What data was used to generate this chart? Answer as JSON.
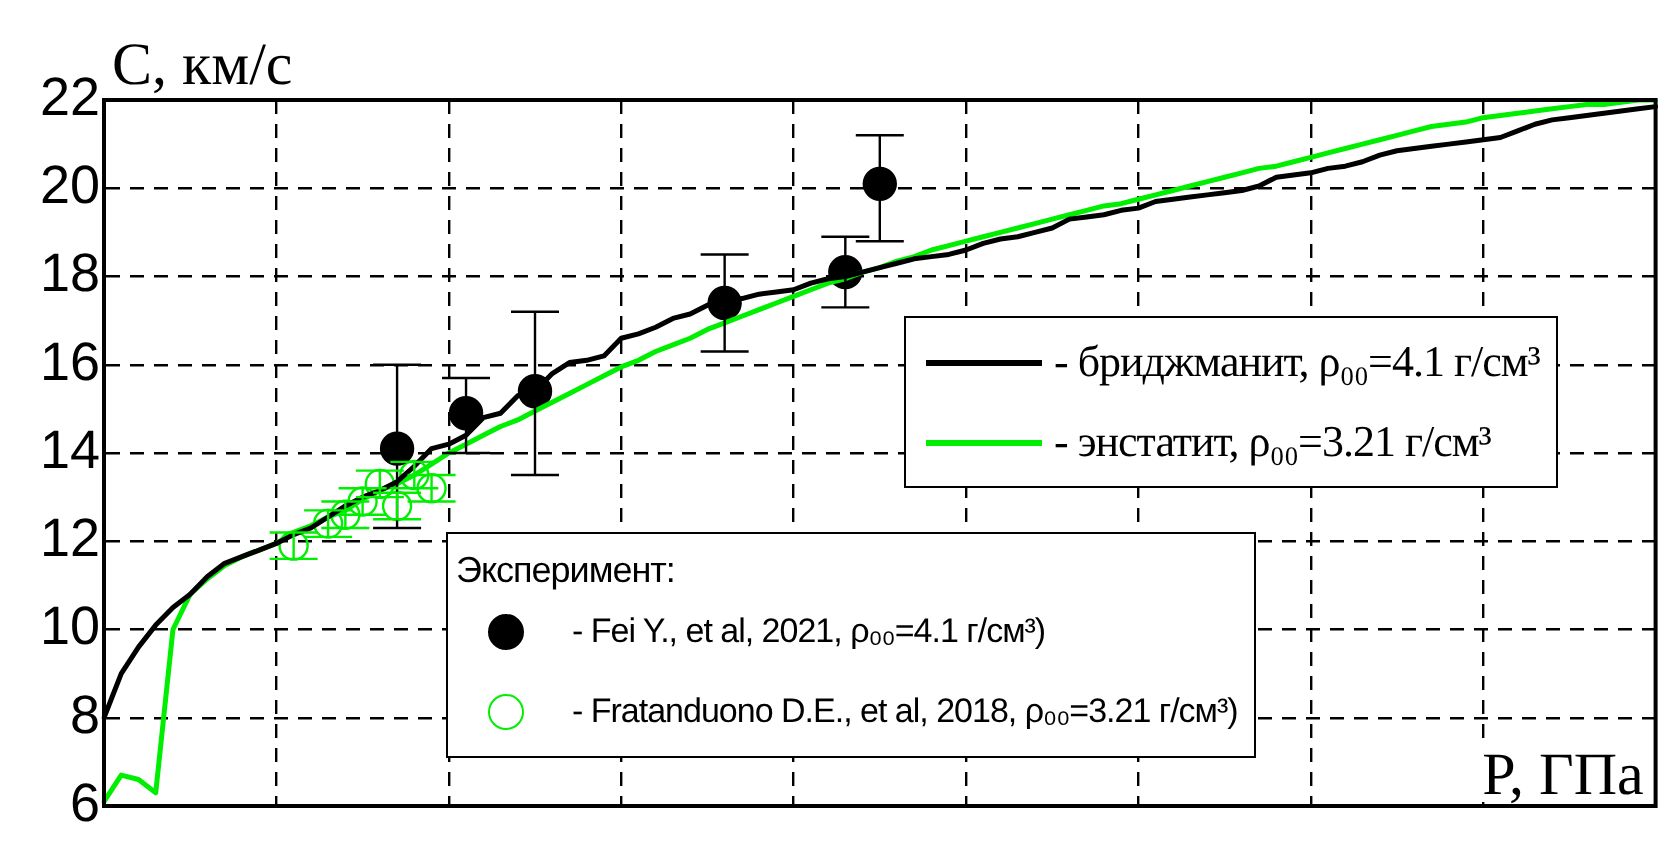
{
  "chart_data": {
    "type": "line",
    "ylabel": "C, км/с",
    "xlabel": "P, ГПа",
    "legend_title": "Эксперимент:",
    "categories": [
      null,
      null,
      null,
      null,
      null,
      null,
      null,
      null,
      null,
      null,
      null,
      null,
      null,
      null,
      null,
      null,
      null,
      null,
      null,
      null,
      null,
      null,
      null,
      null,
      null,
      null,
      null,
      null,
      null,
      null,
      null,
      null,
      null,
      null,
      null,
      null,
      null,
      null,
      null,
      null,
      null,
      null,
      null,
      null,
      null,
      null,
      null,
      null,
      null,
      null,
      null,
      null,
      null,
      null,
      null,
      null,
      null,
      null,
      null,
      null,
      null,
      null,
      null,
      null,
      null,
      null,
      null,
      null,
      null,
      null,
      null,
      null,
      null,
      null,
      null,
      null,
      null,
      null,
      null,
      null,
      null,
      null,
      null,
      null,
      null,
      null,
      null,
      null,
      null,
      null,
      null
    ],
    "ylim": [
      6,
      22
    ],
    "yticks": [
      6,
      8,
      10,
      12,
      14,
      16,
      18,
      20,
      22
    ],
    "grid": true,
    "legend": "bottom right",
    "line_style": "solid",
    "series": [
      {
        "name": "- бриджманит, ρ₀₀=4.1 г/см³",
        "marker": "none",
        "color": "#000000",
        "values": [
          8.0,
          9.0,
          9.6,
          10.1,
          10.5,
          10.8,
          11.2,
          11.5,
          11.65,
          11.8,
          11.95,
          12.15,
          12.3,
          12.55,
          12.8,
          13.0,
          13.15,
          13.35,
          13.7,
          14.1,
          14.2,
          14.4,
          14.8,
          14.9,
          15.3,
          15.4,
          15.8,
          16.05,
          16.1,
          16.2,
          16.6,
          16.7,
          16.85,
          17.05,
          17.15,
          17.35,
          17.45,
          17.5,
          17.6,
          17.65,
          17.7,
          17.85,
          17.95,
          18.0,
          18.1,
          18.2,
          18.3,
          18.4,
          18.45,
          18.5,
          18.6,
          18.75,
          18.85,
          18.9,
          19.0,
          19.1,
          19.3,
          19.35,
          19.4,
          19.5,
          19.55,
          19.7,
          19.75,
          19.8,
          19.85,
          19.9,
          19.95,
          20.05,
          20.25,
          20.3,
          20.35,
          20.45,
          20.5,
          20.6,
          20.75,
          20.85,
          20.9,
          20.95,
          21.0,
          21.05,
          21.1,
          21.15,
          21.3,
          21.45,
          21.55,
          21.6,
          21.65,
          21.7,
          21.75,
          21.8,
          21.85
        ]
      },
      {
        "name": "- энстатит, ρ₀₀=3.21 г/см³",
        "marker": "none",
        "color": "#00ee00",
        "values": [
          6.1,
          6.7,
          6.6,
          6.3,
          10.0,
          10.8,
          11.15,
          11.45,
          11.65,
          11.8,
          11.95,
          12.2,
          12.35,
          12.55,
          12.7,
          12.95,
          13.15,
          13.3,
          13.5,
          13.75,
          14.0,
          14.2,
          14.4,
          14.6,
          14.75,
          14.95,
          15.15,
          15.35,
          15.55,
          15.75,
          15.95,
          16.1,
          16.3,
          16.45,
          16.6,
          16.8,
          16.95,
          17.1,
          17.25,
          17.4,
          17.55,
          17.7,
          17.85,
          17.95,
          18.1,
          18.2,
          18.35,
          18.45,
          18.6,
          18.7,
          18.8,
          18.9,
          19.0,
          19.1,
          19.2,
          19.3,
          19.4,
          19.5,
          19.6,
          19.65,
          19.75,
          19.85,
          19.95,
          20.05,
          20.15,
          20.25,
          20.35,
          20.45,
          20.5,
          20.6,
          20.7,
          20.8,
          20.9,
          21.0,
          21.1,
          21.2,
          21.3,
          21.4,
          21.45,
          21.5,
          21.6,
          21.65,
          21.7,
          21.75,
          21.8,
          21.85,
          21.9,
          21.9,
          21.95,
          22.0,
          22.0
        ]
      },
      {
        "name": "- Fei Y., et al, 2021, ρ₀₀=4.1 г/см³)",
        "type": "scatter",
        "marker": "circle",
        "color": "#000000",
        "values": [
          null,
          null,
          null,
          null,
          null,
          null,
          null,
          null,
          null,
          null,
          null,
          null,
          null,
          null,
          null,
          null,
          null,
          14.1,
          null,
          null,
          null,
          14.9,
          null,
          null,
          null,
          15.4,
          null,
          null,
          null,
          null,
          null,
          null,
          null,
          null,
          null,
          null,
          17.4,
          null,
          null,
          null,
          null,
          null,
          null,
          18.1,
          null,
          20.1,
          null,
          null,
          null,
          null,
          null,
          null,
          null,
          null,
          null,
          null,
          null,
          null,
          null,
          null,
          null,
          null,
          null,
          null,
          null,
          null,
          null,
          null,
          null,
          null,
          null,
          null,
          null,
          null,
          null,
          null,
          null,
          null,
          null,
          null,
          null,
          null,
          null,
          null,
          null,
          null,
          null,
          null,
          null,
          null,
          null
        ],
        "errors": [
          null,
          null,
          null,
          null,
          null,
          null,
          null,
          null,
          null,
          null,
          null,
          null,
          null,
          null,
          null,
          null,
          null,
          [
            12.3,
            16.0
          ],
          null,
          null,
          null,
          [
            14.0,
            15.7
          ],
          null,
          null,
          null,
          [
            13.5,
            17.2
          ],
          null,
          null,
          null,
          null,
          null,
          null,
          null,
          null,
          null,
          null,
          [
            16.3,
            18.5
          ],
          null,
          null,
          null,
          null,
          null,
          null,
          [
            17.3,
            18.9
          ],
          null,
          [
            18.8,
            21.2
          ],
          null,
          null,
          null,
          null,
          null,
          null,
          null,
          null,
          null,
          null,
          null,
          null,
          null,
          null,
          null,
          null,
          null,
          null,
          null,
          null,
          null,
          null,
          null,
          null,
          null,
          null,
          null,
          null,
          null,
          null,
          null,
          null,
          null,
          null,
          null,
          null,
          null,
          null,
          null,
          null,
          null,
          null,
          null,
          null,
          null
        ]
      },
      {
        "name": "- Fratanduono D.E., et al,  2018, ρ₀₀=3.21 г/см³)",
        "type": "scatter",
        "marker": "circle",
        "color": "#00ee00",
        "values": [
          null,
          null,
          null,
          null,
          null,
          null,
          null,
          null,
          null,
          null,
          null,
          11.9,
          null,
          12.4,
          12.6,
          12.9,
          13.3,
          12.8,
          13.5,
          13.2,
          null,
          null,
          null,
          null,
          null,
          null,
          null,
          null,
          null,
          null,
          null,
          null,
          null,
          null,
          null,
          null,
          null,
          null,
          null,
          null,
          null,
          null,
          null,
          null,
          null,
          null,
          null,
          null,
          null,
          null,
          null,
          null,
          null,
          null,
          null,
          null,
          null,
          null,
          null,
          null,
          null,
          null,
          null,
          null,
          null,
          null,
          null,
          null,
          null,
          null,
          null,
          null,
          null,
          null,
          null,
          null,
          null,
          null,
          null,
          null,
          null,
          null,
          null,
          null,
          null,
          null,
          null,
          null,
          null,
          null,
          null
        ],
        "errors": [
          null,
          null,
          null,
          null,
          null,
          null,
          null,
          null,
          null,
          null,
          null,
          0.3,
          null,
          0.3,
          0.3,
          0.3,
          0.3,
          0.3,
          0.3,
          0.3,
          null,
          null,
          null,
          null,
          null,
          null,
          null,
          null,
          null,
          null,
          null,
          null,
          null,
          null,
          null,
          null,
          null,
          null,
          null,
          null,
          null,
          null,
          null,
          null,
          null,
          null,
          null,
          null,
          null,
          null,
          null,
          null,
          null,
          null,
          null,
          null,
          null,
          null,
          null,
          null,
          null,
          null,
          null,
          null,
          null,
          null,
          null,
          null,
          null,
          null,
          null,
          null,
          null,
          null,
          null,
          null,
          null,
          null,
          null,
          null,
          null,
          null,
          null,
          null,
          null,
          null,
          null,
          null,
          null,
          null,
          null
        ]
      }
    ]
  }
}
